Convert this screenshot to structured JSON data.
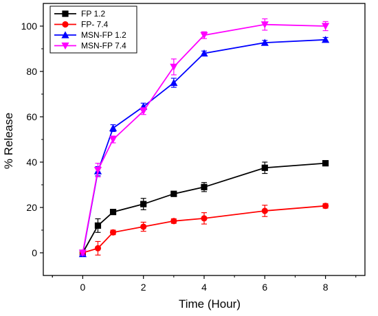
{
  "chart_data": {
    "type": "line",
    "title": "",
    "xlabel": "Time (Hour)",
    "ylabel": "% Release",
    "xlim": [
      -1.3,
      9.3
    ],
    "ylim": [
      -10,
      110
    ],
    "xticks": [
      0,
      2,
      4,
      6,
      8
    ],
    "yticks": [
      0,
      20,
      40,
      60,
      80,
      100
    ],
    "x": [
      0,
      0.5,
      1,
      2,
      3,
      4,
      6,
      8
    ],
    "grid": false,
    "legend_position": "top-left",
    "series": [
      {
        "name": "FP 1.2",
        "color": "#000000",
        "marker": "square",
        "values": [
          0,
          12,
          18,
          21.5,
          26,
          29,
          37.5,
          39.5
        ],
        "errors": [
          1,
          3,
          1,
          2.5,
          1,
          2,
          2.5,
          1
        ]
      },
      {
        "name": "FP- 7.4",
        "color": "#ff0000",
        "marker": "circle",
        "values": [
          0,
          2,
          9,
          11.5,
          14,
          15.2,
          18.5,
          20.7
        ],
        "errors": [
          1,
          3,
          1,
          2,
          1,
          2.5,
          2.5,
          1
        ]
      },
      {
        "name": "MSN-FP 1.2",
        "color": "#0000ff",
        "marker": "triangle-up",
        "values": [
          -0.5,
          36,
          55,
          64.5,
          75,
          88,
          92.7,
          94
        ],
        "errors": [
          1,
          2,
          1.5,
          1.5,
          2,
          1,
          1,
          1
        ]
      },
      {
        "name": "MSN-FP 7.4",
        "color": "#ff00ff",
        "marker": "triangle-down",
        "values": [
          0,
          36.5,
          50,
          62.5,
          82,
          96,
          100.7,
          100
        ],
        "errors": [
          1,
          3,
          1.5,
          1.5,
          3.5,
          1.5,
          2.5,
          2
        ]
      }
    ]
  }
}
